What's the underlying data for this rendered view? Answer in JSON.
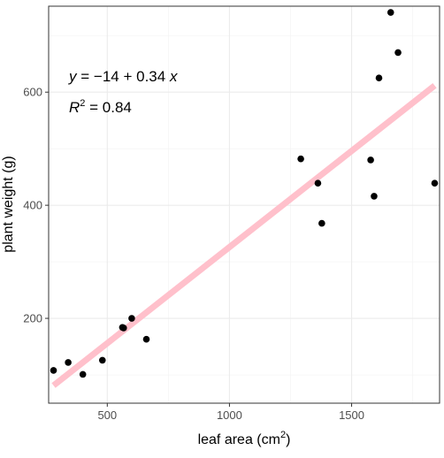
{
  "chart_data": {
    "type": "scatter",
    "xlabel": "leaf area (cm",
    "xlabel_sup": "2",
    "xlabel_close": ")",
    "ylabel": "plant weight (g)",
    "x_ticks": [
      500,
      1000,
      1500
    ],
    "y_ticks": [
      200,
      400,
      600
    ],
    "xlim": [
      260,
      1860
    ],
    "ylim": [
      50,
      752
    ],
    "grid": true,
    "points": [
      {
        "x": 280,
        "y": 108
      },
      {
        "x": 340,
        "y": 122
      },
      {
        "x": 400,
        "y": 101
      },
      {
        "x": 480,
        "y": 126
      },
      {
        "x": 562,
        "y": 184
      },
      {
        "x": 567,
        "y": 183
      },
      {
        "x": 600,
        "y": 200
      },
      {
        "x": 660,
        "y": 163
      },
      {
        "x": 1292,
        "y": 482
      },
      {
        "x": 1362,
        "y": 439
      },
      {
        "x": 1378,
        "y": 368
      },
      {
        "x": 1578,
        "y": 480
      },
      {
        "x": 1592,
        "y": 416
      },
      {
        "x": 1612,
        "y": 625
      },
      {
        "x": 1660,
        "y": 741
      },
      {
        "x": 1690,
        "y": 670
      },
      {
        "x": 1840,
        "y": 439
      }
    ],
    "fit": {
      "intercept": -14,
      "slope": 0.34,
      "x_range": [
        280,
        1840
      ],
      "color": "#ffc0cb"
    },
    "point_color": "#000000",
    "annotations": {
      "equation": {
        "y": "y",
        "eq": " = ",
        "minus": "−",
        "intercept": "14",
        "plus": " + ",
        "slope": "0.34",
        "x": "x"
      },
      "r2": {
        "R": "R",
        "sup": "2",
        "rest": " = 0.84"
      }
    }
  }
}
